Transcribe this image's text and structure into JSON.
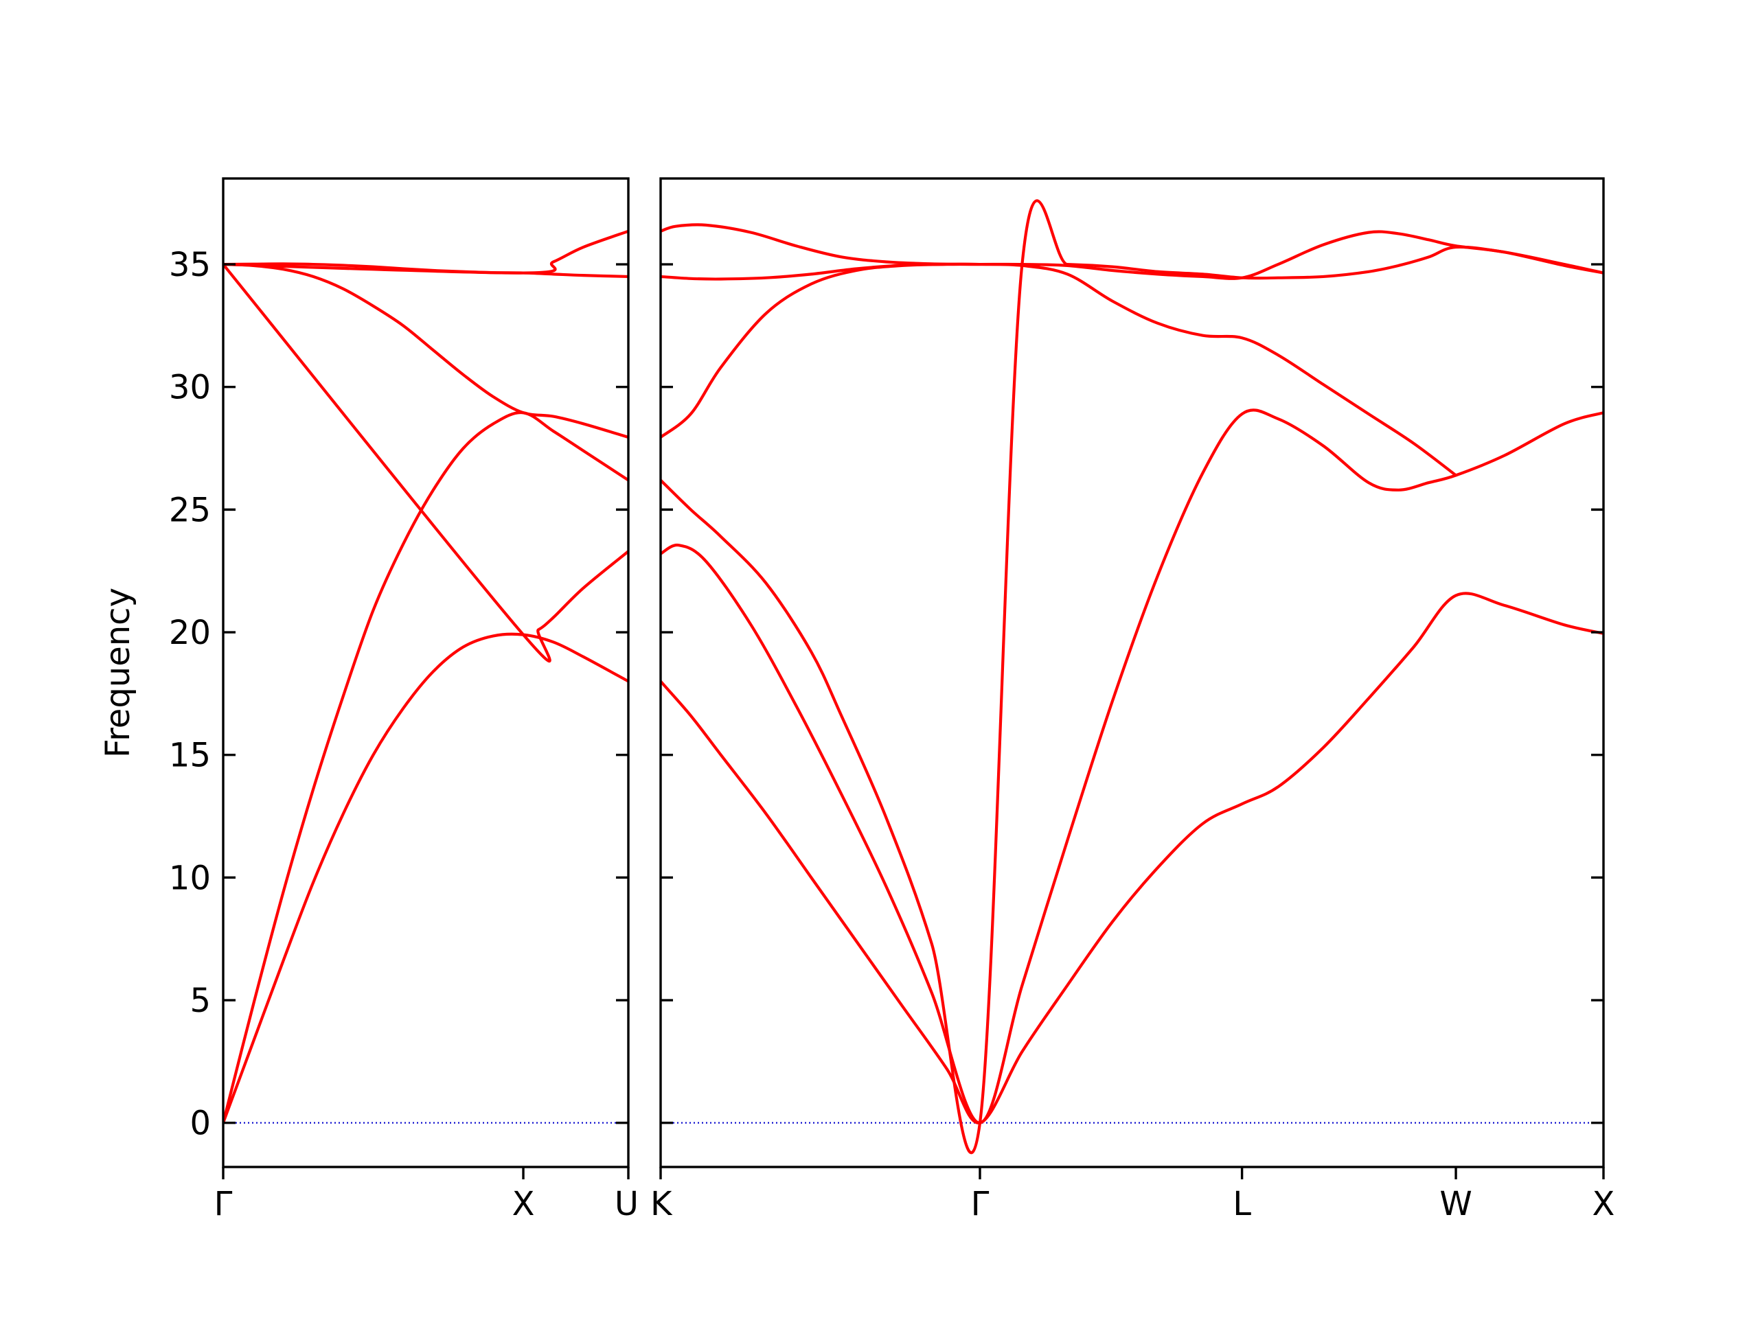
{
  "chart_data": {
    "type": "line",
    "ylabel": "Frequency",
    "ylim": [
      -1.8,
      38.5
    ],
    "yticks": [
      0,
      5,
      10,
      15,
      20,
      25,
      30,
      35
    ],
    "grid": false,
    "legend": "none",
    "colors": {
      "bands": "#ff0000",
      "zero_line": "#0000cc",
      "frame": "#000000"
    },
    "panels": [
      {
        "path_labels": [
          "Γ",
          "X",
          "U"
        ],
        "x_range": [
          0.0,
          1.35
        ],
        "label_positions": [
          0.0,
          1.0,
          1.35
        ],
        "series": [
          {
            "x": [
              0,
              0.1,
              0.2,
              0.3,
              0.4,
              0.5,
              0.6,
              0.7,
              0.8,
              0.9,
              1.0,
              1.1,
              1.2,
              1.35
            ],
            "values": [
              0,
              3.3,
              6.6,
              9.8,
              12.6,
              15.0,
              16.9,
              18.4,
              19.4,
              19.85,
              19.9,
              19.6,
              19.0,
              18.0
            ]
          },
          {
            "x": [
              0,
              0.1,
              0.2,
              0.3,
              0.4,
              0.5,
              0.6,
              0.7,
              0.8,
              0.9,
              1.0,
              1.1,
              1.2,
              1.35
            ],
            "values": [
              0,
              4.8,
              9.4,
              13.6,
              17.4,
              20.9,
              23.6,
              25.8,
              27.5,
              28.5,
              28.95,
              28.2,
              27.4,
              26.2
            ]
          },
          {
            "x": [
              0,
              0.1,
              0.2,
              0.3,
              0.4,
              0.5,
              0.6,
              0.7,
              0.8,
              0.9,
              1.0,
              1.1,
              1.2,
              1.35
            ],
            "values": [
              35.0,
              34.95,
              34.8,
              34.5,
              34.0,
              33.3,
              32.5,
              31.5,
              30.5,
              29.6,
              28.95,
              28.8,
              28.5,
              27.95
            ]
          },
          {
            "x": [
              0,
              0.1,
              0.2,
              0.3,
              0.4,
              0.5,
              0.6,
              0.7,
              0.8,
              0.9,
              1.0,
              1.1,
              1.2,
              1.35
            ],
            "values": [
              35.0,
              35.01,
              35.02,
              35.0,
              34.96,
              34.9,
              34.82,
              34.75,
              34.7,
              34.66,
              34.65,
              34.6,
              34.55,
              34.5
            ]
          },
          {
            "x": [
              0,
              1.0,
              1.1,
              1.2,
              1.35
            ],
            "values": [
              35.0,
              34.65,
              35.1,
              35.7,
              36.35
            ]
          },
          {
            "x": [
              0,
              1.0,
              1.05,
              1.1,
              1.2,
              1.35
            ],
            "values": [
              35.0,
              19.9,
              20.1,
              20.6,
              21.8,
              23.3
            ]
          }
        ]
      },
      {
        "path_labels": [
          "K",
          "Γ",
          "L",
          "W",
          "X"
        ],
        "x_range": [
          0.0,
          3.13
        ],
        "label_positions": [
          0.0,
          1.06,
          1.93,
          2.64,
          3.13
        ],
        "series": [
          {
            "x": [
              0,
              0.1,
              0.2,
              0.35,
              0.5,
              0.65,
              0.8,
              0.95,
              1.06,
              1.2,
              1.35,
              1.5,
              1.65,
              1.8,
              1.93,
              2.05,
              2.2,
              2.35,
              2.5,
              2.64,
              2.8,
              3.0,
              3.13
            ],
            "values": [
              18.0,
              16.6,
              15.0,
              12.6,
              10.0,
              7.4,
              4.8,
              2.2,
              0,
              2.9,
              5.6,
              8.2,
              10.4,
              12.2,
              13.0,
              13.7,
              15.3,
              17.3,
              19.4,
              21.5,
              21.1,
              20.3,
              19.95
            ]
          },
          {
            "x": [
              0,
              0.06,
              0.15,
              0.3,
              0.45,
              0.6,
              0.75,
              0.9,
              1.06,
              1.2,
              1.35,
              1.5,
              1.65,
              1.8,
              1.93,
              2.05,
              2.2,
              2.35,
              2.45,
              2.55,
              2.64,
              2.8,
              3.0,
              3.13
            ],
            "values": [
              23.2,
              23.55,
              22.9,
              20.3,
              17.0,
              13.4,
              9.6,
              5.3,
              0,
              5.6,
              11.5,
              17.2,
              22.3,
              26.5,
              28.9,
              28.7,
              27.6,
              26.1,
              25.8,
              26.1,
              26.4,
              27.2,
              28.5,
              28.95
            ]
          },
          {
            "x": [
              0,
              0.1,
              0.2,
              0.35,
              0.5,
              0.6,
              0.75,
              0.9,
              1.06,
              1.2,
              1.35,
              1.5,
              1.65,
              1.8,
              1.93,
              2.05,
              2.2,
              2.35,
              2.45,
              2.55,
              2.64,
              2.8,
              3.0,
              3.13
            ],
            "values": [
              26.2,
              25.0,
              23.9,
              22.0,
              19.2,
              16.6,
              12.4,
              7.3,
              0,
              35.0,
              35.0,
              34.9,
              34.7,
              34.6,
              34.45,
              34.45,
              34.5,
              34.7,
              34.95,
              35.3,
              35.7,
              35.5,
              35.0,
              34.65
            ]
          },
          {
            "x": [
              0,
              0.1,
              0.2,
              0.35,
              0.5,
              0.65,
              0.8,
              0.95,
              1.06,
              1.2,
              1.35,
              1.5,
              1.65,
              1.8,
              1.93,
              2.05,
              2.2,
              2.35,
              2.5,
              2.64
            ],
            "values": [
              27.95,
              28.9,
              30.8,
              33.0,
              34.2,
              34.75,
              34.95,
              35.0,
              35.0,
              34.95,
              34.6,
              33.5,
              32.6,
              32.1,
              32.0,
              31.3,
              30.1,
              28.9,
              27.7,
              26.4
            ]
          },
          {
            "x": [
              0,
              0.1,
              0.2,
              0.35,
              0.5,
              0.65,
              0.8,
              0.95,
              1.06,
              1.2,
              1.35,
              1.5,
              1.65,
              1.8,
              1.93,
              2.05,
              2.2,
              2.35,
              2.45,
              2.55,
              2.64,
              2.8,
              3.0,
              3.13
            ],
            "values": [
              34.5,
              34.42,
              34.4,
              34.45,
              34.6,
              34.82,
              34.96,
              35.0,
              35.0,
              35.0,
              34.95,
              34.75,
              34.6,
              34.5,
              34.45,
              35.0,
              35.8,
              36.3,
              36.25,
              36.0,
              35.75,
              35.5,
              34.95,
              34.65
            ]
          },
          {
            "x": [
              0,
              0.05,
              0.15,
              0.3,
              0.45,
              0.6,
              0.75,
              0.9,
              1.06
            ],
            "values": [
              36.35,
              36.55,
              36.6,
              36.3,
              35.75,
              35.3,
              35.1,
              35.02,
              35.0
            ]
          }
        ]
      }
    ]
  }
}
